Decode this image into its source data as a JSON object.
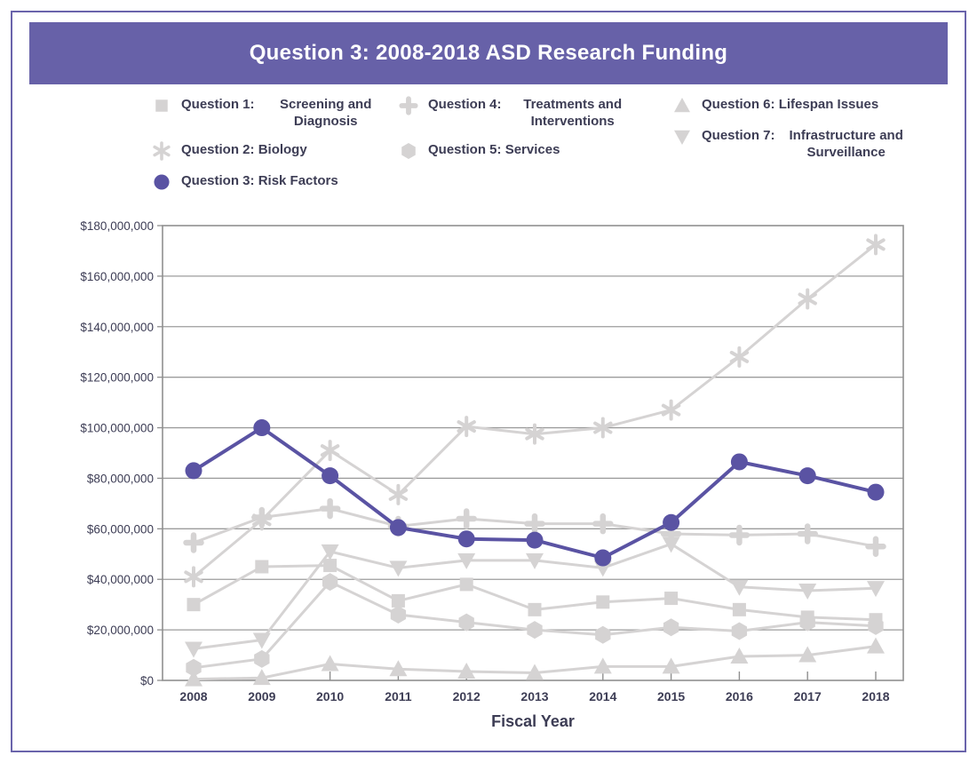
{
  "title": "Question 3: 2008-2018 ASD Research Funding",
  "colors": {
    "banner_purple": "#6761a8",
    "outer_border_purple": "#6a64ab",
    "highlight_purple": "#5a53a3",
    "gray_series": "#d5d3d3",
    "gridline_gray": "#9c9c9c",
    "plot_border_gray": "#8f8f8f",
    "text_dark": "#3d3d55",
    "title_white": "#ffffff"
  },
  "legend": {
    "columns": [
      {
        "items": [
          {
            "prefix": "Question 1:",
            "name": "Screening and Diagnosis",
            "marker": "square",
            "highlight": false
          },
          {
            "prefix": "Question 2:",
            "name": "Biology",
            "marker": "asterisk",
            "highlight": false
          },
          {
            "prefix": "Question 3:",
            "name": "Risk Factors",
            "marker": "circle",
            "highlight": true
          }
        ]
      },
      {
        "items": [
          {
            "prefix": "Question 4:",
            "name": "Treatments and Interventions",
            "marker": "plus",
            "highlight": false
          },
          {
            "prefix": "Question 5:",
            "name": "Services",
            "marker": "hexagon",
            "highlight": false
          }
        ]
      },
      {
        "items": [
          {
            "prefix": "Question 6:",
            "name": "Lifespan Issues",
            "marker": "triangle-up",
            "highlight": false
          },
          {
            "prefix": "Question 7:",
            "name": "Infrastructure and Surveillance",
            "marker": "triangle-down",
            "highlight": false
          }
        ]
      }
    ]
  },
  "chart_data": {
    "type": "line",
    "unit": "USD millions",
    "x": [
      "2008",
      "2009",
      "2010",
      "2011",
      "2012",
      "2013",
      "2014",
      "2015",
      "2016",
      "2017",
      "2018"
    ],
    "series": [
      {
        "name": "Question 1: Screening and Diagnosis",
        "marker": "square",
        "highlight": false,
        "values": [
          30,
          45,
          45.5,
          31.5,
          38,
          28,
          31,
          32.5,
          28,
          25,
          24
        ]
      },
      {
        "name": "Question 2: Biology",
        "marker": "asterisk",
        "highlight": false,
        "values": [
          41,
          63.5,
          91,
          73.5,
          100.5,
          97.5,
          100,
          107,
          128,
          151,
          172.5
        ]
      },
      {
        "name": "Question 3: Risk Factors",
        "marker": "circle",
        "highlight": true,
        "values": [
          83,
          100,
          81,
          60.5,
          56,
          55.5,
          48.5,
          62.5,
          86.5,
          81,
          74.5
        ]
      },
      {
        "name": "Question 4: Treatments and Interventions",
        "marker": "plus",
        "highlight": false,
        "values": [
          54.5,
          64.5,
          68,
          61,
          64,
          62,
          62,
          58,
          57.5,
          58,
          53
        ]
      },
      {
        "name": "Question 5: Services",
        "marker": "hexagon",
        "highlight": false,
        "values": [
          5,
          8.5,
          39,
          26,
          23,
          20,
          18,
          21,
          19.5,
          23,
          21.5
        ]
      },
      {
        "name": "Question 6: Lifespan Issues",
        "marker": "triangle-up",
        "highlight": false,
        "values": [
          0.5,
          1,
          6.5,
          4.5,
          3.5,
          3,
          5.5,
          5.5,
          9.5,
          10,
          13.5
        ]
      },
      {
        "name": "Question 7: Infrastructure and Surveillance",
        "marker": "triangle-down",
        "highlight": false,
        "values": [
          12.5,
          16,
          51,
          44.5,
          47.5,
          47.5,
          44.5,
          54,
          37,
          35.5,
          36.5
        ]
      }
    ],
    "xlabel": "Fiscal Year",
    "ylim": [
      0,
      180000000
    ],
    "ytick_step": 20000000,
    "ytick_labels": [
      "$0",
      "$20,000,000",
      "$40,000,000",
      "$60,000,000",
      "$80,000,000",
      "$100,000,000",
      "$120,000,000",
      "$140,000,000",
      "$160,000,000",
      "$180,000,000"
    ],
    "grid": true,
    "legend_position": "top"
  }
}
